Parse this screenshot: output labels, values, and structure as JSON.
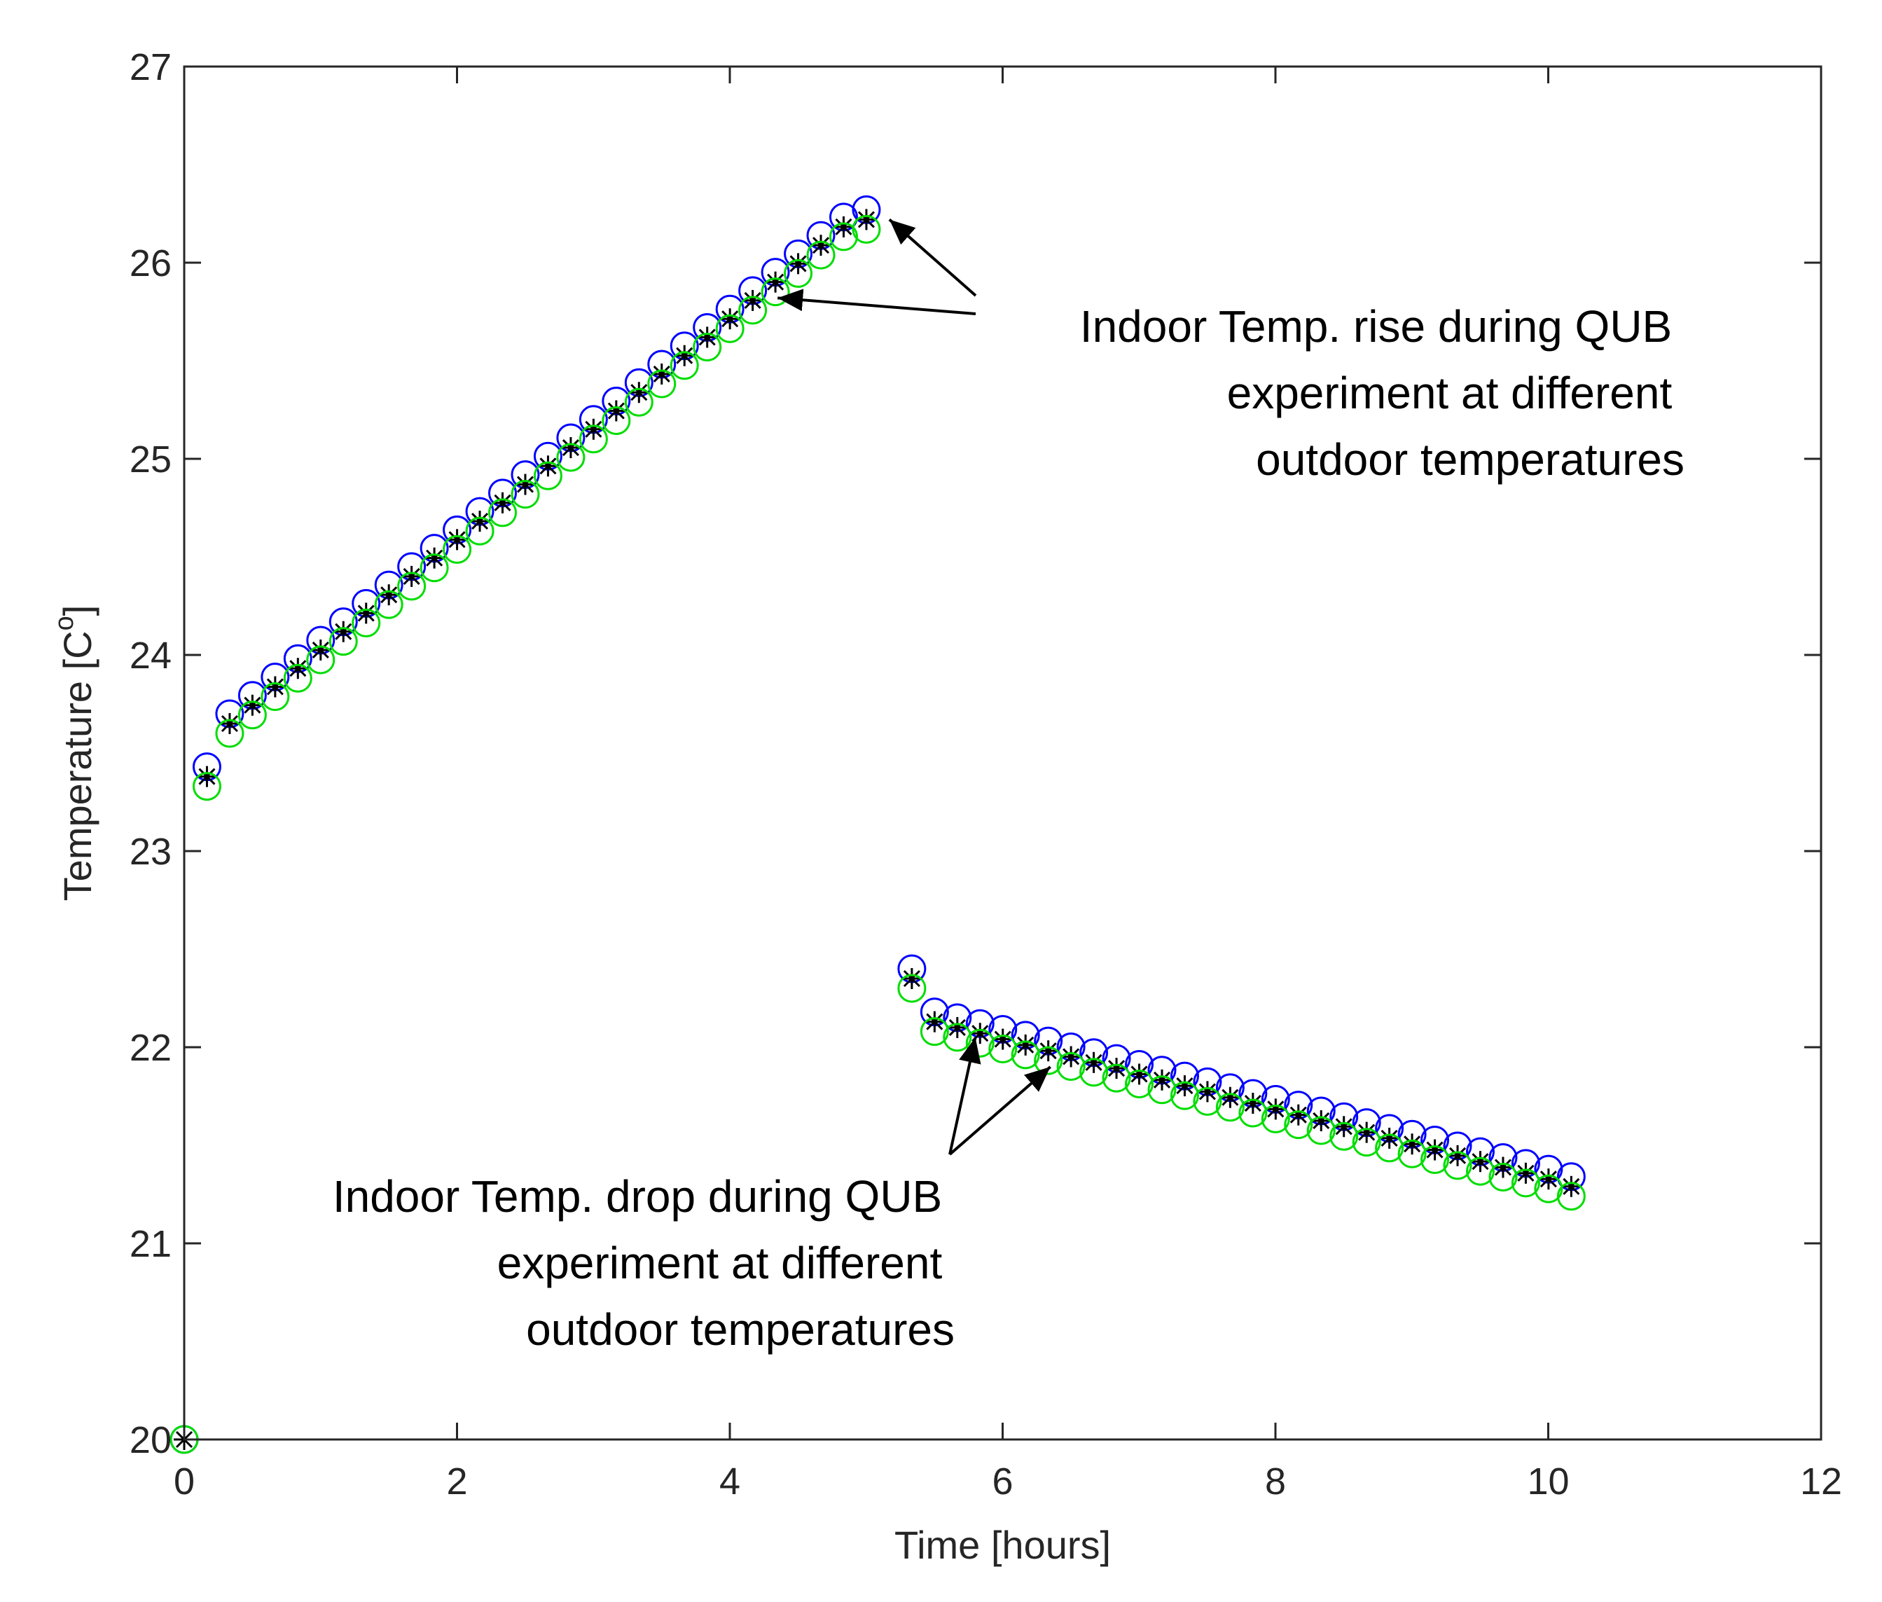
{
  "chart_data": {
    "type": "scatter",
    "title": "",
    "xlabel": "Time [hours]",
    "ylabel_main": "Temperature [C",
    "ylabel_sup": "o",
    "ylabel_close": "]",
    "xlim": [
      0,
      12
    ],
    "ylim": [
      20,
      27
    ],
    "grid": false,
    "xticks": [
      0,
      2,
      4,
      6,
      8,
      10,
      12
    ],
    "yticks": [
      20,
      21,
      22,
      23,
      24,
      25,
      26,
      27
    ],
    "x_step": 0.1667,
    "rise": {
      "start": 1,
      "end": 30,
      "first_values": [
        23.38,
        23.65
      ],
      "slope_per_step": 0.0938,
      "end_value": 26.22
    },
    "drop": {
      "start": 32,
      "end": 61,
      "first_values": [
        22.35,
        22.13
      ],
      "decay_per_step": 0.0297,
      "end_value": 21.29
    },
    "initial_value": 20,
    "series": [
      {
        "name": "blue circles",
        "marker": "circle",
        "color": "#0000ff",
        "offset": 0.05
      },
      {
        "name": "black stars",
        "marker": "star",
        "color": "#000000",
        "offset": 0
      },
      {
        "name": "green circles",
        "marker": "circle",
        "color": "#00dd00",
        "offset": -0.05
      }
    ],
    "annotations": [
      {
        "id": "rise",
        "lines": [
          "Indoor Temp. rise during QUB",
          "experiment at different",
          "outdoor temperatures"
        ],
        "align": "right",
        "arrow_targets": [
          [
            5.17,
            26.22
          ],
          [
            4.35,
            25.82
          ]
        ]
      },
      {
        "id": "drop",
        "lines": [
          "Indoor Temp. drop during QUB",
          "experiment at different",
          "outdoor temperatures"
        ],
        "align": "right",
        "arrow_targets": [
          [
            5.8,
            22.05
          ],
          [
            6.35,
            21.9
          ]
        ]
      }
    ]
  }
}
